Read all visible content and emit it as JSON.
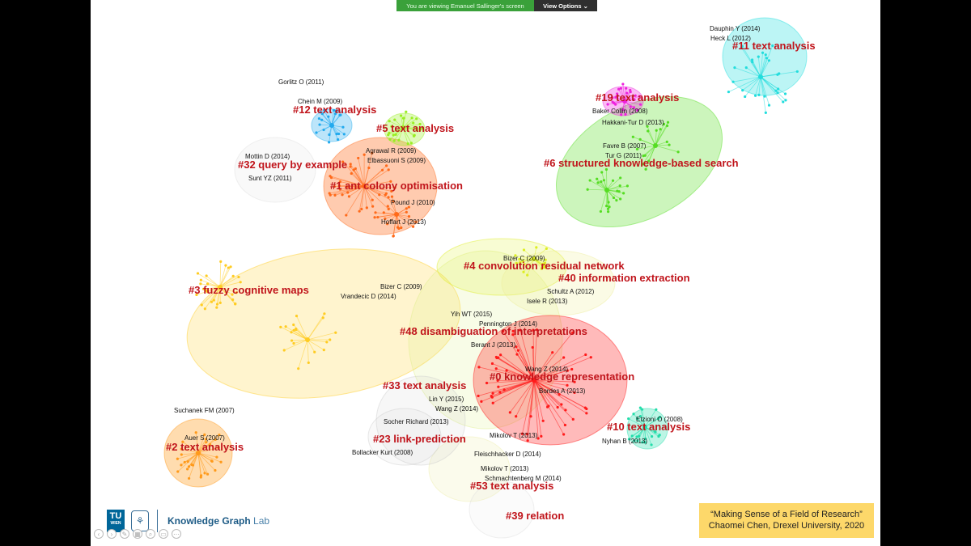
{
  "banner": {
    "viewing": "You are viewing Emanuel Sallinger's screen",
    "options": "View Options ⌄"
  },
  "clusters": [
    {
      "label": "#0 knowledge representation",
      "color": "#ff1a1a"
    },
    {
      "label": "#1 ant colony optimisation",
      "color": "#ff6a1a"
    },
    {
      "label": "#2 text analysis",
      "color": "#ff9a1a"
    },
    {
      "label": "#3 fuzzy cognitive maps",
      "color": "#ffcc22"
    },
    {
      "label": "#4 convolution residual network",
      "color": "#ddee22"
    },
    {
      "label": "#5 text analysis",
      "color": "#99ee22"
    },
    {
      "label": "#6 structured knowledge-based search",
      "color": "#55dd22"
    },
    {
      "label": "#10 text analysis",
      "color": "#22ddaa"
    },
    {
      "label": "#11 text analysis",
      "color": "#22dddd"
    },
    {
      "label": "#12 text analysis",
      "color": "#22aaee"
    },
    {
      "label": "#19 text analysis",
      "color": "#ee22dd"
    },
    {
      "label": "#23 link-prediction",
      "color": "#cccccc"
    },
    {
      "label": "#32 query by example",
      "color": "#dddddd"
    },
    {
      "label": "#33 text analysis",
      "color": "#cccccc"
    },
    {
      "label": "#39 relation",
      "color": "#dddddd"
    },
    {
      "label": "#40 information extraction",
      "color": "#eeee99"
    },
    {
      "label": "#48 disambiguation of interpretations",
      "color": "#ddee88"
    },
    {
      "label": "#53 text analysis",
      "color": "#eeeeaa"
    }
  ],
  "authors": [
    "Dauphin Y (2014)",
    "Heck L (2012)",
    "Gorlitz O (2011)",
    "Chein M (2009)",
    "Baker Collin (2008)",
    "Hakkani-Tur D (2013)",
    "Favre B (2007)",
    "Tur G (2011)",
    "Agrawal R (2009)",
    "Elbassuoni S (2009)",
    "Mottin D (2014)",
    "Sunt YZ (2011)",
    "Pound J (2010)",
    "Hoffart J (2013)",
    "Bizer C (2009)",
    "Bizer C (2009)",
    "Vrandecic D (2014)",
    "Schultz A (2012)",
    "Isele R (2013)",
    "Yih WT (2015)",
    "Pennington J (2014)",
    "Berant J (2013)",
    "Wang Z (2014)",
    "Bordes A (2013)",
    "Lin Y (2015)",
    "Wang Z (2014)",
    "Suchanek FM (2007)",
    "Auer S (2007)",
    "Socher Richard (2013)",
    "Mikolov T (2013)",
    "Etzioni O (2008)",
    "Nyhan B (2013)",
    "Bollacker Kurt (2008)",
    "Fleischhacker D (2014)",
    "Mikolov T (2013)",
    "Schmachtenberg M (2014)"
  ],
  "logo": {
    "tu": "TU",
    "tu_sub": "WIEN",
    "lab_bold": "Knowledge Graph",
    "lab_light": "Lab"
  },
  "citation": {
    "line1": "“Making Sense of a Field of Research”",
    "line2": "Chaomei Chen, Drexel University, 2020"
  }
}
